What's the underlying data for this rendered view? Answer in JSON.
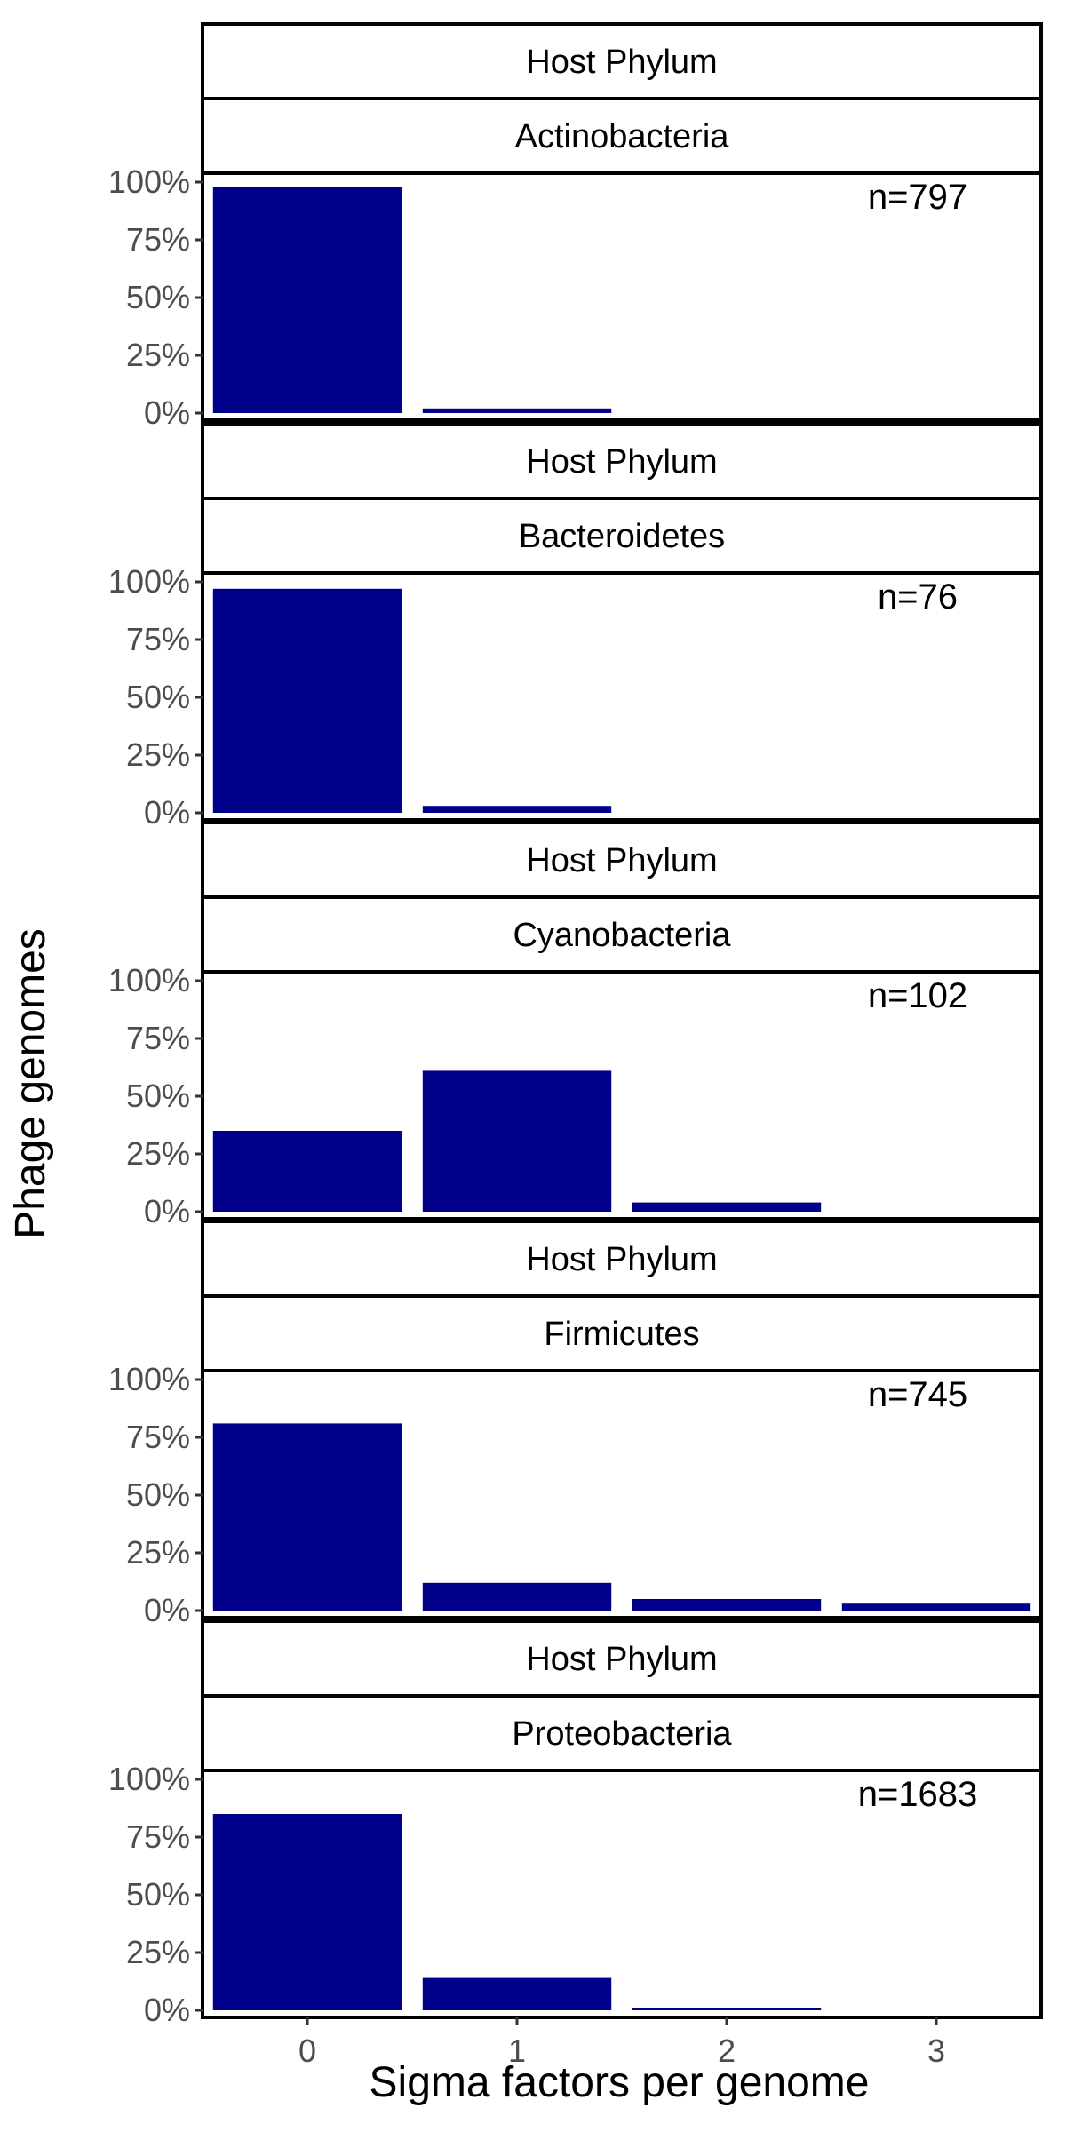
{
  "chart_data": {
    "type": "bar",
    "facet_header": "Host Phylum",
    "xlabel": "Sigma factors per genome",
    "ylabel": "Phage genomes",
    "x_categories": [
      "0",
      "1",
      "2",
      "3"
    ],
    "y_ticks": [
      "0%",
      "25%",
      "50%",
      "75%",
      "100%"
    ],
    "ylim": [
      0,
      1
    ],
    "bar_color": "#00008B",
    "panels": [
      {
        "phylum": "Actinobacteria",
        "n_label": "n=797",
        "values": [
          0.98,
          0.02,
          0.0,
          0.0
        ]
      },
      {
        "phylum": "Bacteroidetes",
        "n_label": "n=76",
        "values": [
          0.97,
          0.03,
          0.0,
          0.0
        ]
      },
      {
        "phylum": "Cyanobacteria",
        "n_label": "n=102",
        "values": [
          0.35,
          0.61,
          0.04,
          0.0
        ]
      },
      {
        "phylum": "Firmicutes",
        "n_label": "n=745",
        "values": [
          0.81,
          0.12,
          0.05,
          0.03
        ]
      },
      {
        "phylum": "Proteobacteria",
        "n_label": "n=1683",
        "values": [
          0.85,
          0.14,
          0.01,
          0.0
        ]
      }
    ]
  }
}
